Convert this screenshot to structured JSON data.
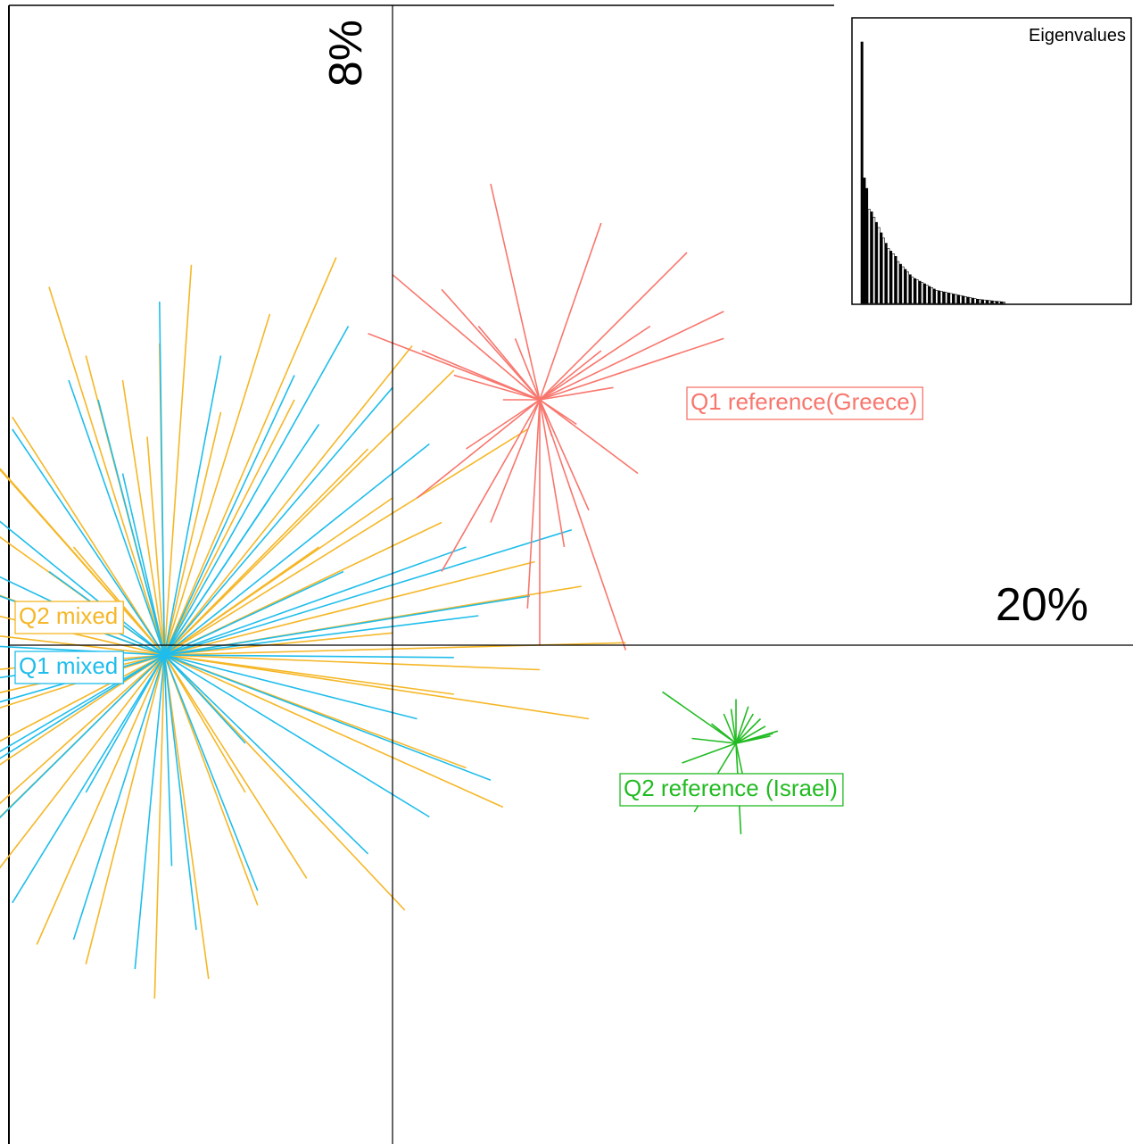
{
  "chart_data": {
    "type": "scatter",
    "subtype": "PCA star plot (s.class)",
    "axes": {
      "x_axis_label": "20%",
      "y_axis_label": "8%",
      "grid": false,
      "ticks": false
    },
    "groups": [
      {
        "name": "Q2 mixed",
        "color": "#F5B727",
        "label": "Q2 mixed",
        "centroid": [
          -0.93,
          -0.04
        ],
        "points": [
          [
            -0.23,
            1.58
          ],
          [
            -0.82,
            1.55
          ],
          [
            -1.4,
            1.46
          ],
          [
            -0.95,
            1.23
          ],
          [
            -1.25,
            1.18
          ],
          [
            -1.1,
            1.08
          ],
          [
            -0.5,
            1.35
          ],
          [
            -0.7,
            0.95
          ],
          [
            -1.55,
            0.93
          ],
          [
            -1.72,
            0.85
          ],
          [
            -1.6,
            0.72
          ],
          [
            -1.85,
            0.62
          ],
          [
            -1.98,
            0.34
          ],
          [
            -1.95,
            0.2
          ],
          [
            -1.8,
            0.06
          ],
          [
            -1.85,
            -0.12
          ],
          [
            -1.98,
            -0.28
          ],
          [
            -2.05,
            -0.4
          ],
          [
            -2.0,
            -0.6
          ],
          [
            -2.1,
            -0.82
          ],
          [
            -1.95,
            -0.96
          ],
          [
            -1.75,
            -1.1
          ],
          [
            -1.45,
            -1.22
          ],
          [
            -1.25,
            -1.3
          ],
          [
            -0.97,
            -1.44
          ],
          [
            -0.75,
            -1.36
          ],
          [
            -0.55,
            -1.06
          ],
          [
            -0.35,
            -0.95
          ],
          [
            0.05,
            -1.08
          ],
          [
            0.45,
            -0.66
          ],
          [
            0.8,
            -0.3
          ],
          [
            0.25,
            -0.2
          ],
          [
            0.95,
            0.01
          ],
          [
            0.0,
            0.05
          ],
          [
            0.77,
            0.24
          ],
          [
            0.58,
            0.34
          ],
          [
            0.0,
            0.6
          ],
          [
            0.55,
            0.88
          ],
          [
            0.25,
            1.12
          ],
          [
            0.08,
            1.22
          ],
          [
            -0.4,
            1.0
          ],
          [
            -0.1,
            0.8
          ],
          [
            -1.3,
            0.4
          ],
          [
            -1.6,
            -0.7
          ],
          [
            -0.6,
            -0.6
          ],
          [
            0.3,
            -0.5
          ],
          [
            0.2,
            0.5
          ],
          [
            -0.3,
            0.4
          ],
          [
            0.6,
            -0.1
          ],
          [
            -1.0,
            0.85
          ]
        ]
      },
      {
        "name": "Q1 mixed",
        "color": "#1FBDEB",
        "label": "Q1 mixed",
        "centroid": [
          -0.93,
          -0.04
        ],
        "points": [
          [
            -0.18,
            1.3
          ],
          [
            -0.95,
            1.4
          ],
          [
            -1.32,
            1.08
          ],
          [
            -1.2,
            1.0
          ],
          [
            -0.7,
            1.18
          ],
          [
            -1.55,
            0.88
          ],
          [
            -1.78,
            0.65
          ],
          [
            -1.9,
            0.42
          ],
          [
            -1.6,
            0.2
          ],
          [
            -1.95,
            -0.18
          ],
          [
            -2.05,
            -0.36
          ],
          [
            -1.8,
            -0.55
          ],
          [
            -1.98,
            -0.7
          ],
          [
            -1.8,
            -0.9
          ],
          [
            -1.55,
            -1.05
          ],
          [
            -1.3,
            -1.2
          ],
          [
            -1.05,
            -1.32
          ],
          [
            -0.8,
            -1.16
          ],
          [
            -0.55,
            -1.0
          ],
          [
            -0.1,
            -0.85
          ],
          [
            0.15,
            -0.7
          ],
          [
            0.4,
            -0.55
          ],
          [
            0.25,
            -0.05
          ],
          [
            0.3,
            0.4
          ],
          [
            0.73,
            0.47
          ],
          [
            0.56,
            0.2
          ],
          [
            0.35,
            0.12
          ],
          [
            0.15,
            0.82
          ],
          [
            0.0,
            1.05
          ],
          [
            -0.3,
            0.9
          ],
          [
            -0.5,
            0.6
          ],
          [
            -1.4,
            0.3
          ],
          [
            -1.25,
            -0.6
          ],
          [
            -0.6,
            -0.4
          ],
          [
            0.1,
            -0.3
          ],
          [
            -0.2,
            0.3
          ],
          [
            -1.7,
            0.0
          ],
          [
            -0.4,
            1.1
          ],
          [
            -1.1,
            0.7
          ],
          [
            -0.9,
            -0.9
          ]
        ]
      },
      {
        "name": "Q1 reference(Greece)",
        "color": "#F8766D",
        "label": "Q1 reference(Greece)",
        "centroid": [
          0.6,
          1.0
        ],
        "points": [
          [
            0.4,
            1.88
          ],
          [
            0.85,
            1.72
          ],
          [
            1.2,
            1.6
          ],
          [
            1.35,
            1.36
          ],
          [
            1.35,
            1.25
          ],
          [
            -0.1,
            1.27
          ],
          [
            0.12,
            1.2
          ],
          [
            0.2,
            1.45
          ],
          [
            0.0,
            1.51
          ],
          [
            0.35,
            1.3
          ],
          [
            0.5,
            1.25
          ],
          [
            0.9,
            1.05
          ],
          [
            1.0,
            0.7
          ],
          [
            0.8,
            0.55
          ],
          [
            0.7,
            0.4
          ],
          [
            0.6,
            0.0
          ],
          [
            0.95,
            -0.02
          ],
          [
            0.2,
            0.3
          ],
          [
            0.1,
            0.6
          ],
          [
            0.3,
            0.8
          ],
          [
            0.75,
            0.9
          ],
          [
            1.05,
            1.3
          ],
          [
            0.45,
            1.0
          ],
          [
            0.55,
            0.15
          ],
          [
            0.65,
            0.85
          ],
          [
            0.4,
            0.5
          ],
          [
            0.25,
            1.1
          ],
          [
            0.85,
            1.2
          ]
        ]
      },
      {
        "name": "Q2 reference (Israel)",
        "color": "#22BB22",
        "label": "Q2 reference (Israel)",
        "centroid": [
          1.4,
          -0.4
        ],
        "points": [
          [
            1.1,
            -0.19
          ],
          [
            1.35,
            -0.28
          ],
          [
            1.22,
            -0.38
          ],
          [
            1.18,
            -0.48
          ],
          [
            1.23,
            -0.68
          ],
          [
            1.42,
            -0.77
          ],
          [
            1.44,
            -0.59
          ],
          [
            1.55,
            -0.36
          ],
          [
            1.5,
            -0.3
          ],
          [
            1.45,
            -0.25
          ],
          [
            1.38,
            -0.26
          ],
          [
            1.4,
            -0.22
          ],
          [
            1.52,
            -0.33
          ],
          [
            1.57,
            -0.35
          ],
          [
            1.54,
            -0.37
          ],
          [
            1.49,
            -0.38
          ],
          [
            1.3,
            -0.32
          ],
          [
            1.47,
            -0.28
          ]
        ]
      }
    ],
    "inset": {
      "title": "Eigenvalues",
      "values": [
        100,
        48,
        44,
        36,
        35,
        33,
        31,
        29,
        27,
        25,
        23,
        21,
        20,
        19,
        18,
        16,
        15,
        14,
        13,
        12,
        11,
        10,
        9.5,
        9,
        8.5,
        8,
        7.5,
        7,
        6.5,
        6,
        5.5,
        5,
        4.8,
        4.6,
        4.4,
        4.2,
        4.0,
        3.8,
        3.6,
        3.4,
        3.2,
        3.0,
        2.8,
        2.6,
        2.4,
        2.2,
        2.0,
        1.8,
        1.6,
        1.5,
        1.4,
        1.3,
        1.2,
        1.1,
        1.0,
        0.9,
        0.8,
        0.7,
        0.6,
        0.5
      ],
      "highlighted": 2
    }
  }
}
